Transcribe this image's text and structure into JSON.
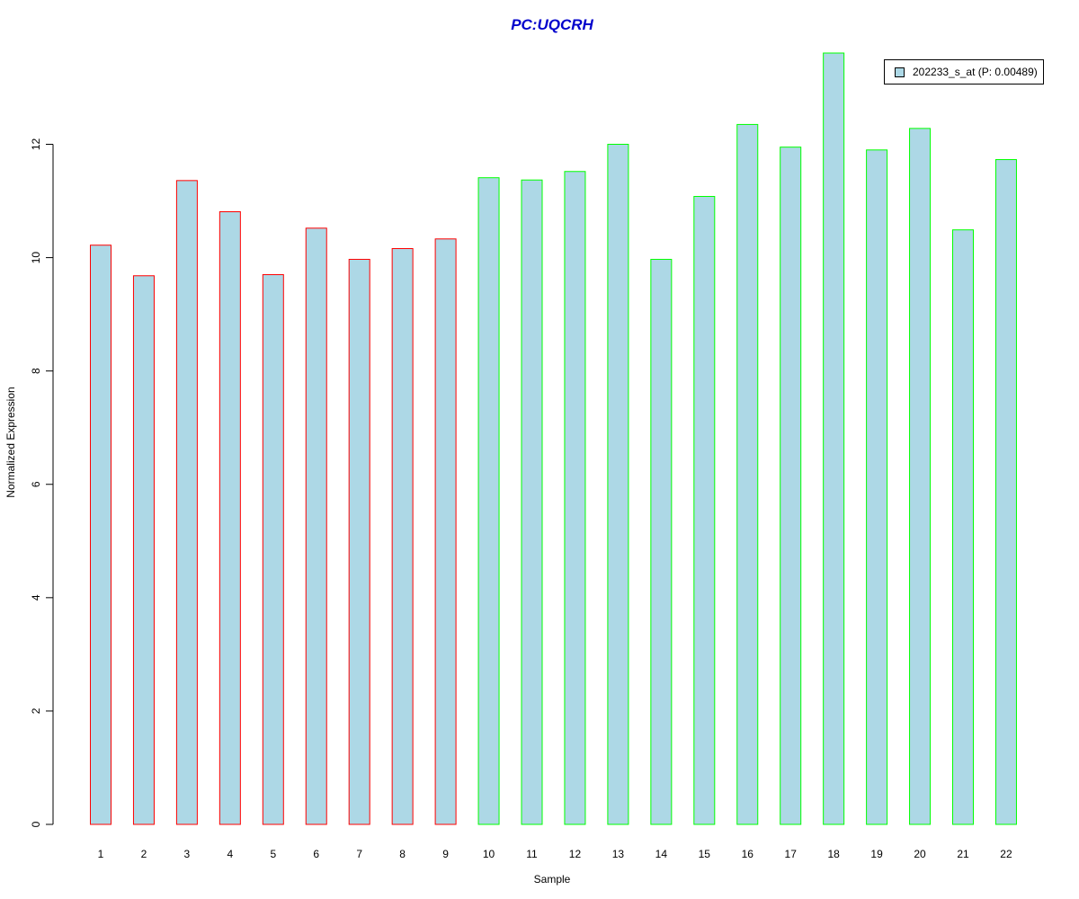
{
  "chart_data": {
    "type": "bar",
    "title": "PC:UQCRH",
    "xlabel": "Sample",
    "ylabel": "Normalized Expression",
    "categories": [
      "1",
      "2",
      "3",
      "4",
      "5",
      "6",
      "7",
      "8",
      "9",
      "10",
      "11",
      "12",
      "13",
      "14",
      "15",
      "16",
      "17",
      "18",
      "19",
      "20",
      "21",
      "22"
    ],
    "series": [
      {
        "name": "202233_s_at (P: 0.00489)",
        "values": [
          10.22,
          9.68,
          11.36,
          10.81,
          9.7,
          10.52,
          9.97,
          10.16,
          10.33,
          11.41,
          11.37,
          11.52,
          12.0,
          9.97,
          11.08,
          12.35,
          11.95,
          13.61,
          11.9,
          12.28,
          10.49,
          11.73
        ]
      }
    ],
    "group_index": [
      1,
      1,
      1,
      1,
      1,
      1,
      1,
      1,
      1,
      2,
      2,
      2,
      2,
      2,
      2,
      2,
      2,
      2,
      2,
      2,
      2,
      2
    ],
    "ylim": [
      0,
      13.61
    ],
    "yticks": [
      0,
      2,
      4,
      6,
      8,
      10,
      12
    ],
    "grid": false,
    "legend_position": "top-right",
    "colors": {
      "title": "#0000cc",
      "bar_fill": "#add8e6",
      "group_borders": [
        "#ff0000",
        "#00ff00"
      ],
      "axis": "#000000"
    }
  }
}
